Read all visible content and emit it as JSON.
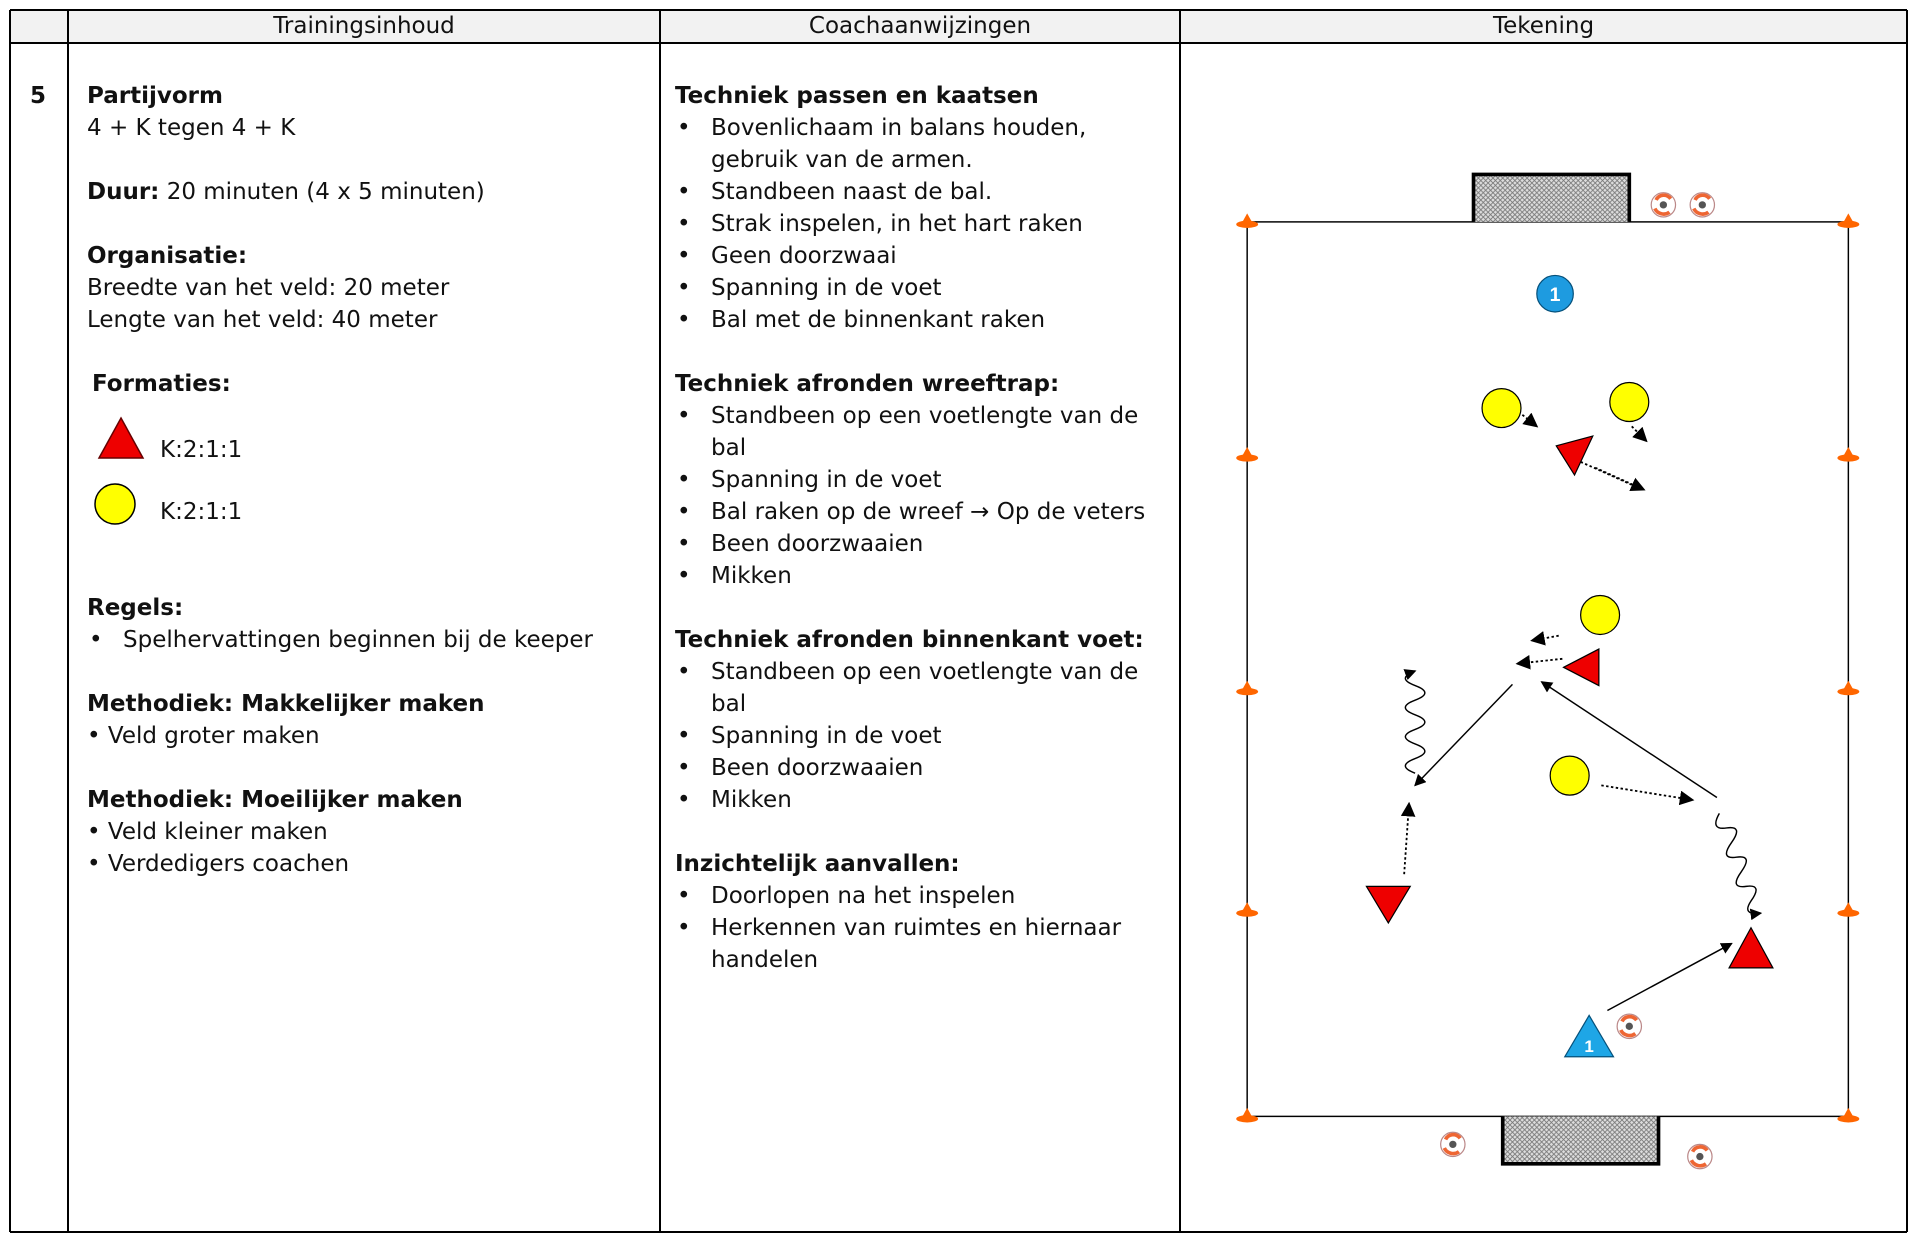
{
  "table": {
    "headers": [
      "Trainingsinhoud",
      "Coachaanwijzingen",
      "Tekening"
    ],
    "row": {
      "number": "5",
      "content": {
        "form_title": "Partijvorm",
        "form_text": "4 + K tegen 4 + K",
        "duration_label": "Duur:",
        "duration_text": "20 minuten (4 x 5 minuten)",
        "organisation_title": "Organisatie:",
        "organisation_lines": [
          "Breedte van het veld: 20 meter",
          "Lengte van het veld: 40 meter"
        ],
        "formations_title": "Formaties:",
        "formations": [
          "K:2:1:1",
          "K:2:1:1"
        ],
        "rules_title": "Regels:",
        "rules": [
          "Spelhervattingen beginnen bij de keeper"
        ],
        "easier_title": "Methodiek: Makkelijker maken",
        "easier": [
          "Veld groter maken"
        ],
        "harder_title": "Methodiek: Moeilijker maken",
        "harder": [
          "Veld kleiner maken",
          "Verdedigers coachen"
        ]
      },
      "coaching": [
        {
          "title": "Techniek passen en kaatsen",
          "items": [
            "Bovenlichaam in balans houden, gebruik van de armen.",
            "Standbeen naast de bal.",
            "Strak inspelen, in het hart raken",
            "Geen doorzwaai",
            "Spanning in de voet",
            "Bal met de binnenkant raken"
          ]
        },
        {
          "title": "Techniek afronden wreeftrap:",
          "items": [
            "Standbeen op een voetlengte van de bal",
            "Spanning in de voet",
            "Bal raken op de wreef → Op de veters",
            "Been doorzwaaien",
            "Mikken"
          ]
        },
        {
          "title": "Techniek afronden binnenkant voet:",
          "items": [
            "Standbeen op een voetlengte van de bal",
            "Spanning in de voet",
            "Been doorzwaaien",
            "Mikken"
          ]
        },
        {
          "title": "Inzichtelijk aanvallen:",
          "items": [
            "Doorlopen na het inspelen",
            "Herkennen van ruimtes en hiernaar handelen"
          ]
        }
      ],
      "drawing": {
        "player_labels": [
          "1",
          "1"
        ]
      }
    }
  }
}
